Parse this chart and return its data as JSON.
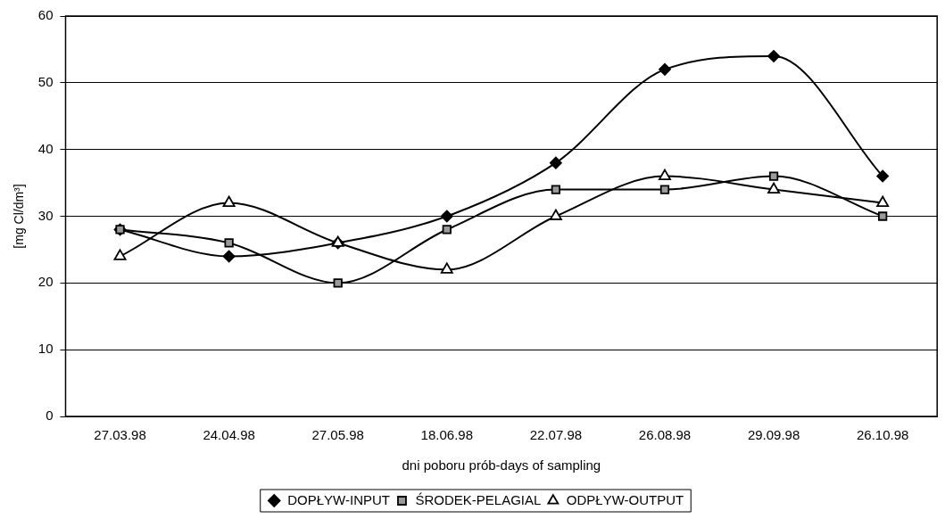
{
  "chart_data": {
    "type": "line",
    "xlabel": "dni poboru prób-days of sampling",
    "ylabel": "[mg Cl/dm³]",
    "categories": [
      "27.03.98",
      "24.04.98",
      "27.05.98",
      "18.06.98",
      "22.07.98",
      "26.08.98",
      "29.09.98",
      "26.10.98"
    ],
    "series": [
      {
        "name": "DOPŁYW-INPUT",
        "color": "#000000",
        "marker": "diamond",
        "values": [
          28,
          24,
          26,
          30,
          38,
          52,
          54,
          36
        ]
      },
      {
        "name": "ŚRODEK-PELAGIAL",
        "color": "#000000",
        "marker": "square",
        "values": [
          28,
          26,
          20,
          28,
          34,
          34,
          36,
          30
        ]
      },
      {
        "name": "ODPŁYW-OUTPUT",
        "color": "#000000",
        "marker": "triangle",
        "values": [
          24,
          32,
          26,
          22,
          30,
          36,
          34,
          32
        ]
      }
    ],
    "ylim": [
      0,
      60
    ],
    "yticks": [
      0,
      10,
      20,
      30,
      40,
      50,
      60
    ],
    "grid": "y",
    "legend": "bottom",
    "line_style": "solid"
  }
}
